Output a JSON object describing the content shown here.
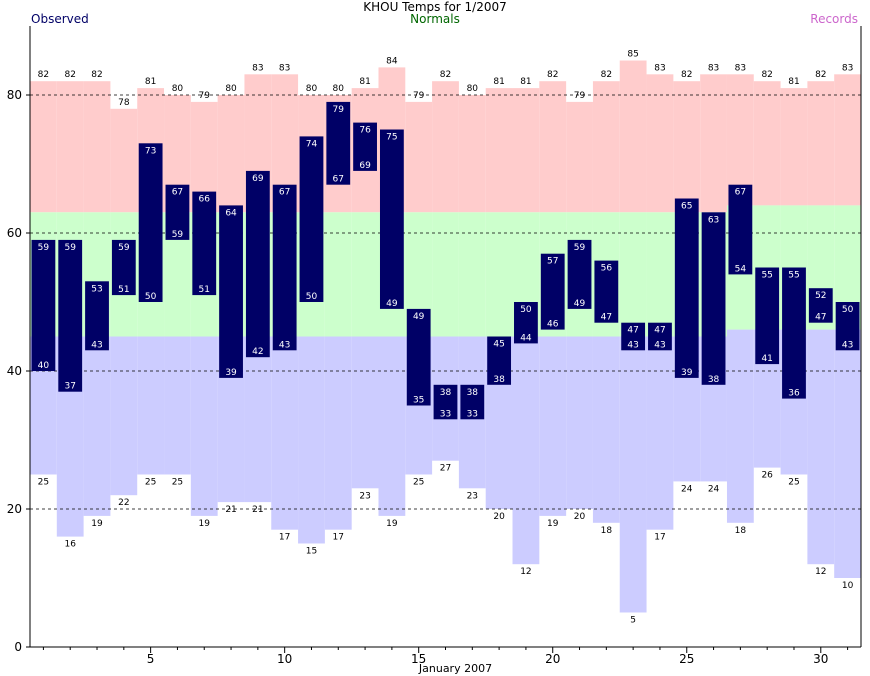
{
  "chart_data": {
    "type": "bar",
    "title": "KHOU Temps for 1/2007",
    "xlabel": "January 2007",
    "ylabel": "",
    "legend": [
      {
        "name": "Observed",
        "color": "#000066"
      },
      {
        "name": "Normals",
        "color": "#006600"
      },
      {
        "name": "Records",
        "color": "#cc66cc"
      }
    ],
    "colors": {
      "observed": "#000066",
      "record_high_band": "#ffcccc",
      "normal_band": "#ccffcc",
      "record_low_band": "#ccccff",
      "label_on_bar": "#ffffff",
      "record_label": "#000000"
    },
    "x": [
      1,
      2,
      3,
      4,
      5,
      6,
      7,
      8,
      9,
      10,
      11,
      12,
      13,
      14,
      15,
      16,
      17,
      18,
      19,
      20,
      21,
      22,
      23,
      24,
      25,
      26,
      27,
      28,
      29,
      30,
      31
    ],
    "xlim": [
      0.5,
      31.5
    ],
    "ylim": [
      0,
      90
    ],
    "xticks": [
      5,
      10,
      15,
      20,
      25,
      30
    ],
    "yticks": [
      0,
      20,
      40,
      60,
      80
    ],
    "grid": "dashed horizontal at 20, 40, 60, 80",
    "observed_high": [
      59,
      59,
      53,
      59,
      73,
      67,
      66,
      64,
      69,
      67,
      74,
      79,
      76,
      75,
      49,
      38,
      38,
      45,
      50,
      57,
      59,
      56,
      47,
      47,
      65,
      63,
      67,
      55,
      55,
      52,
      50
    ],
    "observed_low": [
      40,
      37,
      43,
      51,
      50,
      59,
      51,
      39,
      42,
      43,
      50,
      67,
      69,
      49,
      35,
      33,
      33,
      38,
      44,
      46,
      49,
      47,
      43,
      43,
      39,
      38,
      54,
      41,
      36,
      47,
      43
    ],
    "record_high": [
      82,
      82,
      82,
      78,
      81,
      80,
      79,
      80,
      83,
      83,
      80,
      80,
      81,
      84,
      79,
      82,
      80,
      81,
      81,
      82,
      79,
      82,
      85,
      83,
      82,
      83,
      83,
      82,
      81,
      82,
      83
    ],
    "record_low": [
      25,
      16,
      19,
      22,
      25,
      25,
      19,
      21,
      21,
      17,
      15,
      17,
      23,
      19,
      25,
      27,
      23,
      20,
      12,
      19,
      20,
      18,
      5,
      17,
      24,
      24,
      18,
      26,
      25,
      12,
      10
    ],
    "normal_high": [
      63,
      63,
      63,
      63,
      63,
      63,
      63,
      63,
      63,
      63,
      63,
      63,
      63,
      63,
      63,
      63,
      63,
      63,
      63,
      63,
      63,
      63,
      63,
      63,
      63,
      63,
      64,
      64,
      64,
      64,
      64
    ],
    "normal_low": [
      45,
      45,
      45,
      45,
      45,
      45,
      45,
      45,
      45,
      45,
      45,
      45,
      45,
      45,
      45,
      45,
      45,
      45,
      45,
      45,
      45,
      45,
      45,
      45,
      45,
      45,
      46,
      46,
      46,
      46,
      46
    ]
  }
}
